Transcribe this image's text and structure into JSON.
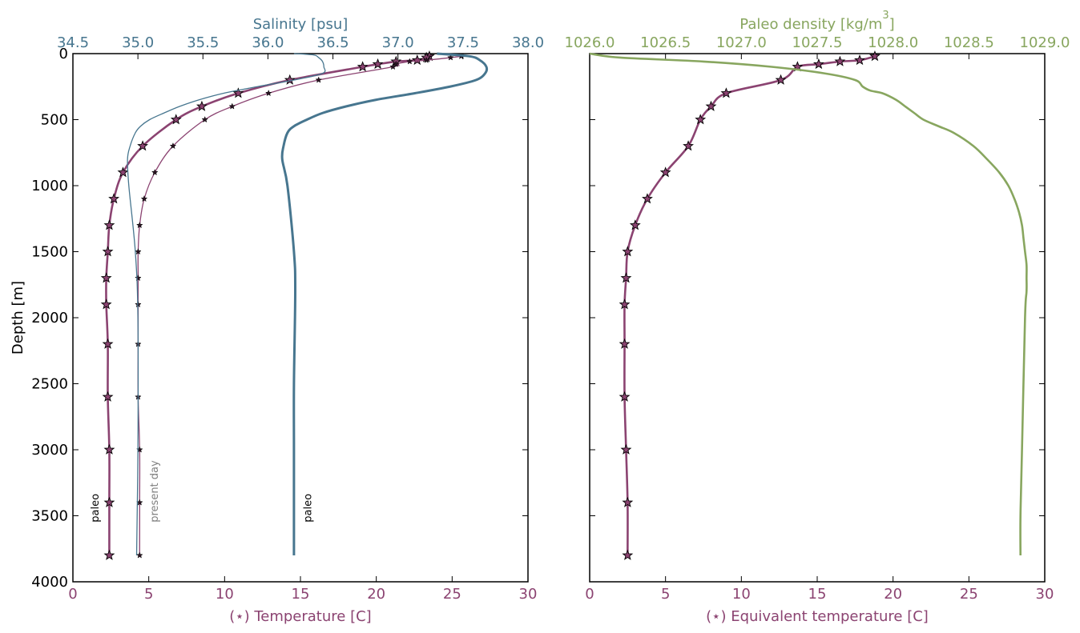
{
  "colors": {
    "temperature": "#8b4371",
    "salinity": "#47768f",
    "density": "#88a65f",
    "star_fill": "#8b4371",
    "axis": "#000000",
    "present_day_label": "#808080"
  },
  "chart_data": [
    {
      "type": "line",
      "title": "",
      "ylabel": "Depth [m]",
      "y_inverted": true,
      "ylim": [
        0,
        4000
      ],
      "yticks": [
        "0",
        "500",
        "1000",
        "1500",
        "2000",
        "2500",
        "3000",
        "3500",
        "4000"
      ],
      "xlabel_bottom": "(⋆) Temperature [C]",
      "xlim_bottom": [
        0,
        30
      ],
      "xticks_bottom": [
        "0",
        "5",
        "10",
        "15",
        "20",
        "25",
        "30"
      ],
      "xlabel_top": "Salinity [psu]",
      "xlim_top": [
        34.5,
        38.0
      ],
      "xticks_top": [
        "34.5",
        "35.0",
        "35.5",
        "36.0",
        "36.5",
        "37.0",
        "37.5",
        "38.0"
      ],
      "annotations": [
        "paleo",
        "present day",
        "paleo"
      ],
      "series": [
        {
          "axis": "temperature",
          "marker": "star-large",
          "depth": [
            20,
            30,
            50,
            60,
            80,
            100,
            200,
            300,
            400,
            500,
            700,
            900,
            1100,
            1300,
            1500,
            1700,
            1900,
            2200,
            2600,
            3000,
            3400,
            3800
          ],
          "values": [
            23.5,
            23.3,
            22.7,
            21.3,
            20.1,
            19.1,
            14.3,
            10.9,
            8.5,
            6.8,
            4.6,
            3.3,
            2.7,
            2.4,
            2.3,
            2.2,
            2.2,
            2.3,
            2.3,
            2.4,
            2.4,
            2.4
          ]
        },
        {
          "axis": "temperature",
          "marker": "star-small",
          "depth": [
            20,
            30,
            50,
            60,
            80,
            100,
            200,
            300,
            400,
            500,
            700,
            900,
            1100,
            1300,
            1500,
            1700,
            1900,
            2200,
            2600,
            3000,
            3400,
            3800
          ],
          "values": [
            25.6,
            24.9,
            23.3,
            22.2,
            21.3,
            21.1,
            16.2,
            12.9,
            10.5,
            8.7,
            6.6,
            5.4,
            4.7,
            4.4,
            4.3,
            4.3,
            4.3,
            4.3,
            4.3,
            4.4,
            4.4,
            4.4
          ]
        },
        {
          "axis": "salinity",
          "name_label": "present day",
          "depth": [
            0,
            10,
            30,
            60,
            100,
            150,
            200,
            250,
            300,
            350,
            400,
            450,
            500,
            550,
            600,
            700,
            800,
            1000,
            1500,
            2000,
            3000,
            3800
          ],
          "values": [
            36.2,
            36.35,
            36.39,
            36.42,
            36.43,
            36.42,
            36.2,
            35.92,
            35.66,
            35.47,
            35.32,
            35.2,
            35.09,
            35.02,
            34.98,
            34.94,
            34.92,
            34.93,
            34.98,
            35.0,
            35.0,
            34.99
          ]
        },
        {
          "axis": "salinity",
          "name_label": "paleo",
          "depth": [
            0,
            20,
            50,
            100,
            150,
            200,
            250,
            300,
            350,
            400,
            450,
            500,
            550,
            600,
            700,
            800,
            1000,
            1500,
            1800,
            2500,
            3000,
            3800
          ],
          "values": [
            37.3,
            37.55,
            37.63,
            37.68,
            37.67,
            37.6,
            37.4,
            37.13,
            36.83,
            36.6,
            36.42,
            36.3,
            36.2,
            36.15,
            36.12,
            36.11,
            36.15,
            36.2,
            36.21,
            36.2,
            36.2,
            36.2
          ]
        }
      ]
    },
    {
      "type": "line",
      "title": "",
      "ylabel": "",
      "y_inverted": true,
      "ylim": [
        0,
        4000
      ],
      "xlabel_bottom": "(⋆) Equivalent temperature [C]",
      "xlim_bottom": [
        0,
        30
      ],
      "xticks_bottom": [
        "0",
        "5",
        "10",
        "15",
        "20",
        "25",
        "30"
      ],
      "xlabel_top": "Paleo density [kg/m",
      "xlabel_top_superscript": "3",
      "xlabel_top_suffix": "]",
      "xlim_top": [
        1026.0,
        1029.0
      ],
      "xticks_top": [
        "1026.0",
        "1026.5",
        "1027.0",
        "1027.5",
        "1028.0",
        "1028.5",
        "1029.0"
      ],
      "series": [
        {
          "axis": "equivalent_temperature",
          "marker": "star-large",
          "depth": [
            20,
            50,
            60,
            80,
            100,
            200,
            300,
            400,
            500,
            700,
            900,
            1100,
            1300,
            1500,
            1700,
            1900,
            2200,
            2600,
            3000,
            3400,
            3800
          ],
          "values": [
            18.8,
            17.8,
            16.5,
            15.1,
            13.7,
            12.6,
            9.0,
            8.0,
            7.3,
            6.5,
            5.0,
            3.8,
            3.0,
            2.5,
            2.4,
            2.3,
            2.3,
            2.3,
            2.4,
            2.5,
            2.5
          ]
        },
        {
          "axis": "density",
          "depth": [
            0,
            30,
            60,
            100,
            150,
            200,
            250,
            280,
            300,
            350,
            400,
            450,
            500,
            550,
            600,
            700,
            800,
            900,
            1000,
            1100,
            1200,
            1300,
            1400,
            1500,
            1600,
            1700,
            1800,
            2000,
            3000,
            3500,
            3800
          ],
          "values": [
            1026.0,
            1026.2,
            1026.75,
            1027.2,
            1027.55,
            1027.75,
            1027.8,
            1027.85,
            1027.93,
            1028.02,
            1028.08,
            1028.14,
            1028.2,
            1028.3,
            1028.4,
            1028.53,
            1028.62,
            1028.7,
            1028.76,
            1028.8,
            1028.83,
            1028.85,
            1028.86,
            1028.87,
            1028.88,
            1028.88,
            1028.88,
            1028.87,
            1028.85,
            1028.84,
            1028.84
          ]
        }
      ]
    }
  ]
}
